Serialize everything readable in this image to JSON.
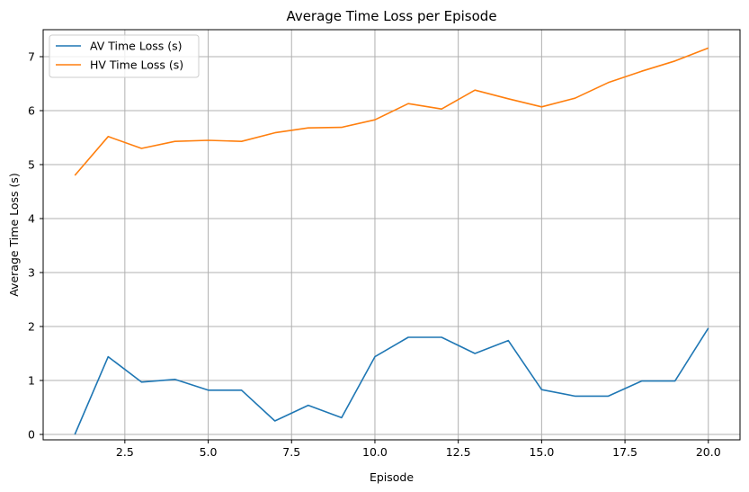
{
  "chart_data": {
    "type": "line",
    "title": "Average Time Loss per Episode",
    "xlabel": "Episode",
    "ylabel": "Average Time Loss (s)",
    "xlim": [
      0.05,
      20.95
    ],
    "ylim": [
      -0.1,
      7.5
    ],
    "xticks": [
      2.5,
      5.0,
      7.5,
      10.0,
      12.5,
      15.0,
      17.5,
      20.0
    ],
    "xtick_labels": [
      "2.5",
      "5.0",
      "7.5",
      "10.0",
      "12.5",
      "15.0",
      "17.5",
      "20.0"
    ],
    "yticks": [
      0,
      1,
      2,
      3,
      4,
      5,
      6,
      7
    ],
    "ytick_labels": [
      "0",
      "1",
      "2",
      "3",
      "4",
      "5",
      "6",
      "7"
    ],
    "grid": true,
    "legend_position": "top-left",
    "x": [
      1,
      2,
      3,
      4,
      5,
      6,
      7,
      8,
      9,
      10,
      11,
      12,
      13,
      14,
      15,
      16,
      17,
      18,
      19,
      20
    ],
    "series": [
      {
        "name": "AV Time Loss (s)",
        "color": "#1f77b4",
        "values": [
          0.0,
          1.44,
          0.97,
          1.02,
          0.82,
          0.82,
          0.25,
          0.54,
          0.31,
          1.44,
          1.8,
          1.8,
          1.5,
          1.74,
          0.83,
          0.71,
          0.71,
          0.99,
          0.99,
          1.97
        ]
      },
      {
        "name": "HV Time Loss (s)",
        "color": "#ff7f0e",
        "values": [
          4.8,
          5.52,
          5.3,
          5.43,
          5.45,
          5.43,
          5.59,
          5.68,
          5.69,
          5.83,
          6.13,
          6.03,
          6.38,
          6.22,
          6.07,
          6.23,
          6.52,
          6.73,
          6.92,
          7.16
        ]
      }
    ]
  }
}
